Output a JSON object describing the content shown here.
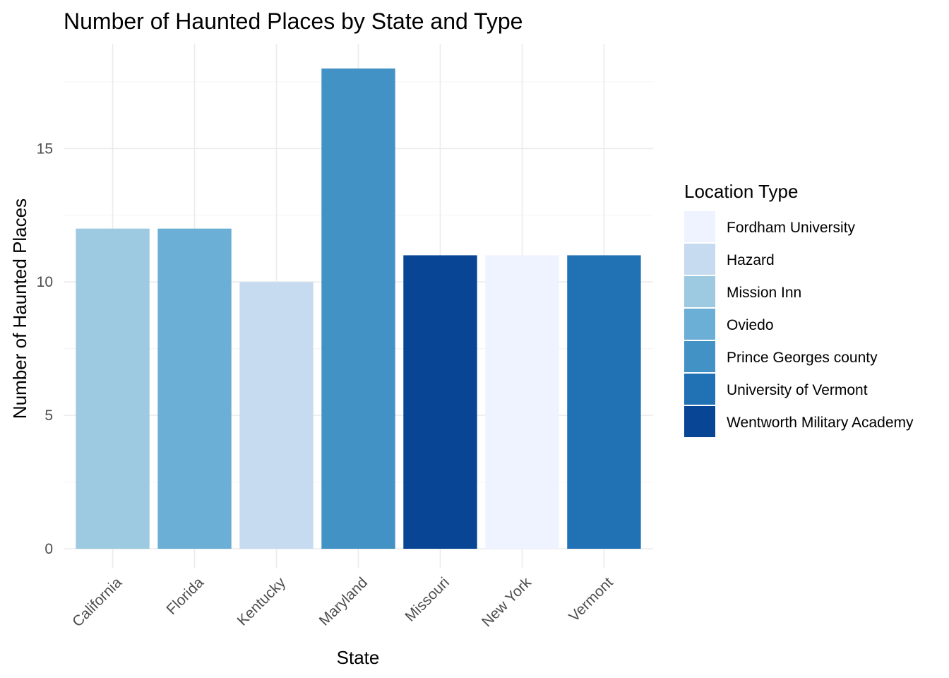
{
  "chart_data": {
    "type": "bar",
    "title": "Number of Haunted Places by State and Type",
    "xlabel": "State",
    "ylabel": "Number of Haunted Places",
    "categories": [
      "California",
      "Florida",
      "Kentucky",
      "Maryland",
      "Missouri",
      "New York",
      "Vermont"
    ],
    "values": [
      12,
      12,
      10,
      18,
      11,
      11,
      11
    ],
    "bar_types": [
      "Mission Inn",
      "Oviedo",
      "Hazard",
      "Prince Georges county",
      "Wentworth Military Academy",
      "Fordham University",
      "University of Vermont"
    ],
    "ylim": [
      0,
      18.9
    ],
    "y_ticks": [
      0,
      5,
      10,
      15
    ],
    "y_tick_labels": [
      "0",
      "5",
      "10",
      "15"
    ],
    "grid": true,
    "legend": {
      "title": "Location Type",
      "position": "right",
      "entries": [
        {
          "label": "Fordham University",
          "color": "#eff3ff"
        },
        {
          "label": "Hazard",
          "color": "#c6dbef"
        },
        {
          "label": "Mission Inn",
          "color": "#9ecae1"
        },
        {
          "label": "Oviedo",
          "color": "#6baed6"
        },
        {
          "label": "Prince Georges county",
          "color": "#4292c6"
        },
        {
          "label": "University of Vermont",
          "color": "#2171b5"
        },
        {
          "label": "Wentworth Military Academy",
          "color": "#084594"
        }
      ]
    }
  }
}
